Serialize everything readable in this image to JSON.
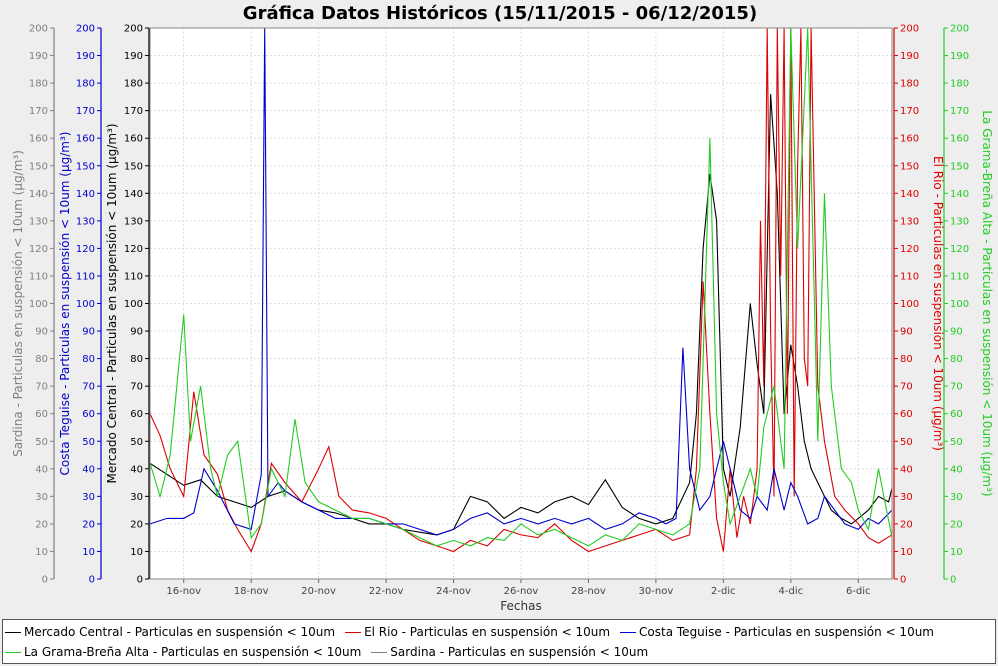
{
  "chart_data": {
    "type": "line",
    "title": "Gráfica Datos Históricos (15/11/2015 - 06/12/2015)",
    "xlabel": "Fechas",
    "x_range": [
      0,
      22
    ],
    "x_ticks": [
      {
        "x": 1,
        "label": "16-nov"
      },
      {
        "x": 3,
        "label": "18-nov"
      },
      {
        "x": 5,
        "label": "20-nov"
      },
      {
        "x": 7,
        "label": "22-nov"
      },
      {
        "x": 9,
        "label": "24-nov"
      },
      {
        "x": 11,
        "label": "26-nov"
      },
      {
        "x": 13,
        "label": "28-nov"
      },
      {
        "x": 15,
        "label": "30-nov"
      },
      {
        "x": 17,
        "label": "2-dic"
      },
      {
        "x": 19,
        "label": "4-dic"
      },
      {
        "x": 21,
        "label": "6-dic"
      }
    ],
    "y_ticks": [
      0,
      10,
      20,
      30,
      40,
      50,
      60,
      70,
      80,
      90,
      100,
      110,
      120,
      130,
      140,
      150,
      160,
      170,
      180,
      190,
      200
    ],
    "ylim": [
      0,
      200
    ],
    "grid": true,
    "legend_position": "bottom",
    "axes": [
      {
        "id": "sardina",
        "label": "Sardina - Particulas en suspensión < 10um (µg/m³)",
        "color": "#808080",
        "side": "left"
      },
      {
        "id": "costa",
        "label": "Costa Teguise - Particulas en suspensión < 10um (µg/m³)",
        "color": "#0000cc",
        "side": "left"
      },
      {
        "id": "mercado",
        "label": "Mercado Central - Particulas en suspensión < 10um (µg/m³)",
        "color": "#000000",
        "side": "left"
      },
      {
        "id": "rio",
        "label": "El Rio - Particulas en suspensión < 10um (µg/m³)",
        "color": "#dd0000",
        "side": "right"
      },
      {
        "id": "grama",
        "label": "La Grama-Breña Alta - Particulas en suspensión < 10um (µg/m³)",
        "color": "#22cc22",
        "side": "right"
      }
    ],
    "series": [
      {
        "name": "Mercado Central - Particulas en suspensión < 10um",
        "color": "#000000",
        "x": [
          0,
          0.5,
          1,
          1.5,
          2,
          2.5,
          3,
          3.5,
          4,
          4.5,
          5,
          5.5,
          6,
          6.5,
          7,
          7.5,
          8,
          8.5,
          9,
          9.5,
          10,
          10.5,
          11,
          11.5,
          12,
          12.5,
          13,
          13.5,
          14,
          14.5,
          15,
          15.5,
          16,
          16.2,
          16.4,
          16.6,
          16.8,
          17,
          17.2,
          17.5,
          17.8,
          18,
          18.2,
          18.4,
          18.6,
          18.8,
          19,
          19.2,
          19.4,
          19.6,
          19.8,
          20,
          20.2,
          20.5,
          20.8,
          21,
          21.3,
          21.6,
          21.9,
          22
        ],
        "y": [
          42,
          38,
          34,
          36,
          30,
          28,
          26,
          30,
          32,
          28,
          25,
          24,
          22,
          20,
          20,
          18,
          17,
          16,
          18,
          30,
          28,
          22,
          26,
          24,
          28,
          30,
          27,
          36,
          26,
          22,
          20,
          22,
          35,
          60,
          120,
          147,
          130,
          40,
          30,
          55,
          100,
          78,
          60,
          176,
          140,
          60,
          85,
          70,
          50,
          40,
          35,
          30,
          25,
          22,
          20,
          22,
          25,
          30,
          28,
          33
        ]
      },
      {
        "name": "El Rio - Particulas en suspensión < 10um",
        "color": "#dd0000",
        "x": [
          0,
          0.3,
          0.6,
          1,
          1.3,
          1.6,
          2,
          2.3,
          2.6,
          3,
          3.3,
          3.6,
          4,
          4.5,
          5,
          5.3,
          5.6,
          6,
          6.5,
          7,
          7.5,
          8,
          8.5,
          9,
          9.5,
          10,
          10.5,
          11,
          11.5,
          12,
          12.5,
          13,
          13.5,
          14,
          14.5,
          15,
          15.5,
          16,
          16.2,
          16.4,
          16.6,
          16.8,
          17,
          17.2,
          17.4,
          17.6,
          17.8,
          18,
          18.1,
          18.2,
          18.3,
          18.4,
          18.5,
          18.6,
          18.7,
          18.8,
          18.9,
          19,
          19.1,
          19.2,
          19.3,
          19.4,
          19.5,
          19.6,
          19.8,
          20,
          20.3,
          20.6,
          21,
          21.3,
          21.6,
          22
        ],
        "y": [
          60,
          52,
          40,
          30,
          68,
          45,
          38,
          25,
          18,
          10,
          20,
          42,
          35,
          28,
          40,
          48,
          30,
          25,
          24,
          22,
          18,
          14,
          12,
          10,
          14,
          12,
          18,
          16,
          15,
          20,
          14,
          10,
          12,
          14,
          16,
          18,
          14,
          16,
          40,
          108,
          60,
          22,
          10,
          40,
          15,
          30,
          20,
          40,
          130,
          70,
          200,
          90,
          30,
          200,
          110,
          200,
          60,
          200,
          30,
          150,
          200,
          80,
          70,
          200,
          70,
          50,
          30,
          25,
          20,
          15,
          13,
          16
        ]
      },
      {
        "name": "Costa Teguise - Particulas en suspensión < 10um",
        "color": "#0000cc",
        "x": [
          0,
          0.5,
          1,
          1.3,
          1.6,
          2,
          2.5,
          3,
          3.3,
          3.4,
          3.5,
          3.8,
          4,
          4.5,
          5,
          5.5,
          6,
          6.5,
          7,
          7.5,
          8,
          8.5,
          9,
          9.5,
          10,
          10.5,
          11,
          11.5,
          12,
          12.5,
          13,
          13.5,
          14,
          14.5,
          15,
          15.3,
          15.6,
          15.8,
          16,
          16.3,
          16.6,
          17,
          17.2,
          17.5,
          17.8,
          18,
          18.3,
          18.5,
          18.8,
          19,
          19.2,
          19.5,
          19.8,
          20,
          20.3,
          20.6,
          21,
          21.3,
          21.6,
          22
        ],
        "y": [
          20,
          22,
          22,
          24,
          40,
          32,
          20,
          18,
          38,
          200,
          30,
          35,
          32,
          28,
          25,
          22,
          22,
          22,
          20,
          20,
          18,
          16,
          18,
          22,
          24,
          20,
          22,
          20,
          22,
          20,
          22,
          18,
          20,
          24,
          22,
          20,
          22,
          84,
          40,
          25,
          30,
          50,
          40,
          25,
          22,
          30,
          25,
          40,
          25,
          35,
          30,
          20,
          22,
          30,
          25,
          20,
          18,
          22,
          20,
          25
        ]
      },
      {
        "name": "La Grama-Breña Alta - Particulas en suspensión < 10um",
        "color": "#22cc22",
        "x": [
          0,
          0.3,
          0.6,
          1,
          1.2,
          1.5,
          1.8,
          2,
          2.3,
          2.6,
          3,
          3.3,
          3.6,
          4,
          4.3,
          4.6,
          5,
          5.5,
          6,
          6.5,
          7,
          7.5,
          8,
          8.5,
          9,
          9.5,
          10,
          10.5,
          11,
          11.5,
          12,
          12.5,
          13,
          13.5,
          14,
          14.5,
          15,
          15.5,
          16,
          16.3,
          16.6,
          16.8,
          17,
          17.2,
          17.5,
          17.8,
          18,
          18.2,
          18.5,
          18.8,
          19,
          19.2,
          19.5,
          19.8,
          20,
          20.2,
          20.5,
          20.8,
          21,
          21.3,
          21.6,
          22
        ],
        "y": [
          42,
          30,
          45,
          96,
          50,
          70,
          40,
          30,
          45,
          50,
          15,
          20,
          40,
          30,
          58,
          35,
          28,
          25,
          22,
          22,
          20,
          18,
          15,
          12,
          14,
          12,
          15,
          14,
          20,
          16,
          18,
          15,
          12,
          16,
          14,
          20,
          18,
          16,
          20,
          40,
          160,
          60,
          35,
          20,
          30,
          40,
          30,
          55,
          70,
          40,
          200,
          120,
          200,
          50,
          140,
          70,
          40,
          35,
          25,
          18,
          40,
          15
        ]
      },
      {
        "name": "Sardina - Particulas en suspensión < 10um",
        "color": "#808080",
        "x": [],
        "y": []
      }
    ]
  }
}
